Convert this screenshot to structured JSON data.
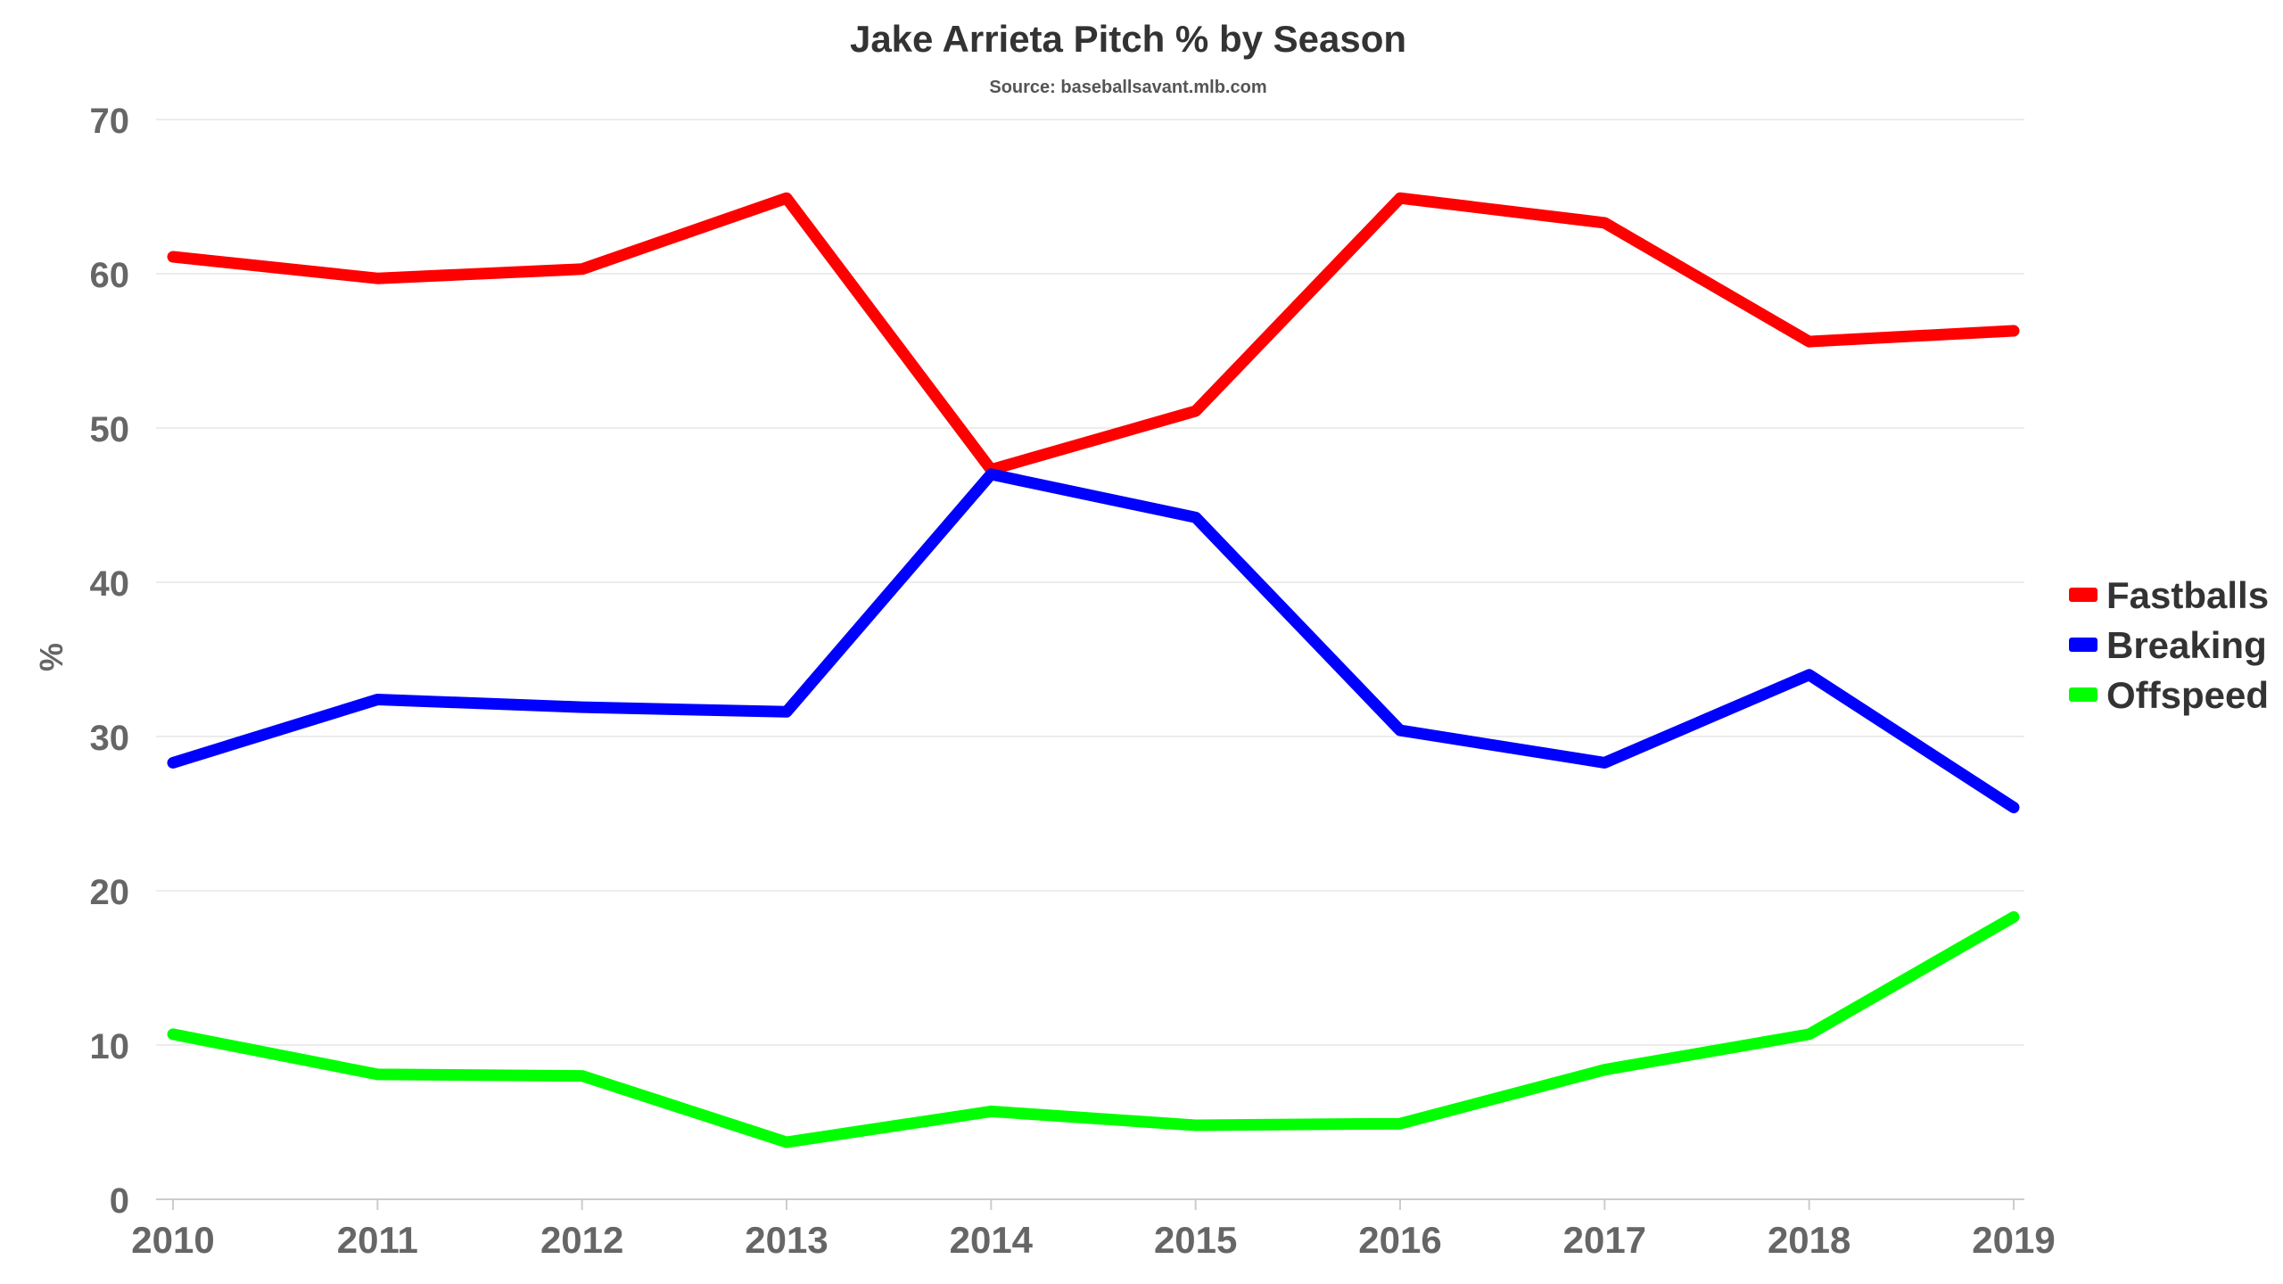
{
  "chart_data": {
    "type": "line",
    "title": "Jake Arrieta Pitch % by Season",
    "subtitle": "Source: baseballsavant.mlb.com",
    "xlabel": "",
    "ylabel": "%",
    "categories": [
      "2010",
      "2011",
      "2012",
      "2013",
      "2014",
      "2015",
      "2016",
      "2017",
      "2018",
      "2019"
    ],
    "ylim": [
      0,
      70
    ],
    "yticks": [
      0,
      10,
      20,
      30,
      40,
      50,
      60,
      70
    ],
    "grid": true,
    "legend_position": "right",
    "series": [
      {
        "name": "Fastballs",
        "color": "#ff0000",
        "values": [
          61.1,
          59.7,
          60.3,
          64.9,
          47.3,
          51.1,
          64.9,
          63.3,
          55.6,
          56.3
        ]
      },
      {
        "name": "Breaking",
        "color": "#0000ff",
        "values": [
          28.3,
          32.4,
          31.9,
          31.6,
          47.0,
          44.2,
          30.4,
          28.3,
          34.0,
          25.4
        ]
      },
      {
        "name": "Offspeed",
        "color": "#00ff00",
        "values": [
          10.7,
          8.1,
          8.0,
          3.7,
          5.7,
          4.8,
          4.9,
          8.4,
          10.7,
          18.3
        ]
      }
    ]
  }
}
